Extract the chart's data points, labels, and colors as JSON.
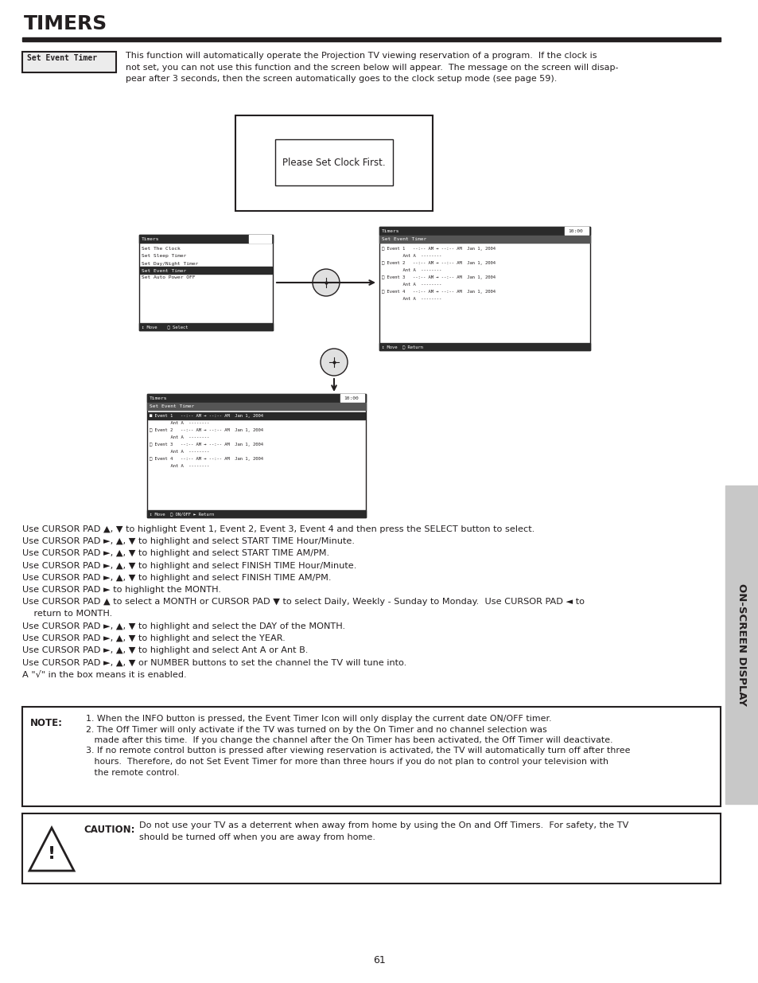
{
  "title": "TIMERS",
  "page_number": "61",
  "sidebar_text": "ON-SCREEN DISPLAY",
  "set_event_timer_label": "Set Event Timer",
  "intro_lines": [
    "This function will automatically operate the Projection TV viewing reservation of a program.  If the clock is",
    "not set, you can not use this function and the screen below will appear.  The message on the screen will disap-",
    "pear after 3 seconds, then the screen automatically goes to the clock setup mode (see page 59)."
  ],
  "clock_box_text": "Please Set Clock First.",
  "instructions": [
    "Use CURSOR PAD ▲, ▼ to highlight Event 1, Event 2, Event 3, Event 4 and then press the SELECT button to select.",
    "Use CURSOR PAD ►, ▲, ▼ to highlight and select START TIME Hour/Minute.",
    "Use CURSOR PAD ►, ▲, ▼ to highlight and select START TIME AM/PM.",
    "Use CURSOR PAD ►, ▲, ▼ to highlight and select FINISH TIME Hour/Minute.",
    "Use CURSOR PAD ►, ▲, ▼ to highlight and select FINISH TIME AM/PM.",
    "Use CURSOR PAD ► to highlight the MONTH.",
    "Use CURSOR PAD ▲ to select a MONTH or CURSOR PAD ▼ to select Daily, Weekly - Sunday to Monday.  Use CURSOR PAD ◄ to",
    "    return to MONTH.",
    "Use CURSOR PAD ►, ▲, ▼ to highlight and select the DAY of the MONTH.",
    "Use CURSOR PAD ►, ▲, ▼ to highlight and select the YEAR.",
    "Use CURSOR PAD ►, ▲, ▼ to highlight and select Ant A or Ant B.",
    "Use CURSOR PAD ►, ▲, ▼ or NUMBER buttons to set the channel the TV will tune into.",
    "A \"√\" in the box means it is enabled."
  ],
  "note_title": "NOTE:",
  "note_lines": [
    "1. When the INFO button is pressed, the Event Timer Icon will only display the current date ON/OFF timer.",
    "2. The Off Timer will only activate if the TV was turned on by the On Timer and no channel selection was",
    "   made after this time.  If you change the channel after the On Timer has been activated, the Off Timer will deactivate.",
    "3. If no remote control button is pressed after viewing reservation is activated, the TV will automatically turn off after three",
    "   hours.  Therefore, do not Set Event Timer for more than three hours if you do not plan to control your television with",
    "   the remote control."
  ],
  "caution_title": "CAUTION:",
  "caution_lines": [
    "Do not use your TV as a deterrent when away from home by using the On and Off Timers.  For safety, the TV",
    "should be turned off when you are away from home."
  ],
  "bg_color": "#ffffff",
  "text_color": "#231f20",
  "dark_bar": "#2a2a2a",
  "sidebar_bg": "#c8c8c8"
}
